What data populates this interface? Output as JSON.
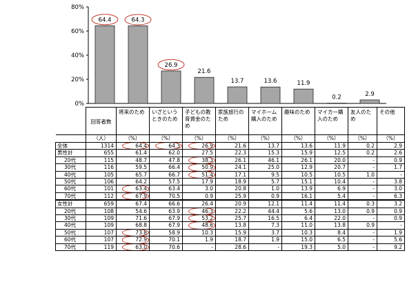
{
  "chart_data": {
    "type": "bar",
    "categories": [
      "将来のため",
      "いざというときのため",
      "子どもの教育資金のため",
      "家族旅行のため",
      "マイホーム購入のため",
      "趣味のため",
      "マイカー購入のため",
      "友人のため",
      "その他"
    ],
    "values": [
      64.4,
      64.3,
      26.9,
      21.6,
      13.7,
      13.6,
      11.9,
      0.2,
      2.9
    ],
    "value_labels": [
      "64.4",
      "64.3",
      "26.9",
      "21.6",
      "13.7",
      "13.6",
      "11.9",
      "0.2",
      "2.9"
    ],
    "circled": [
      true,
      true,
      true,
      false,
      false,
      false,
      false,
      false,
      false
    ],
    "y_ticks": [
      "0%",
      "20%",
      "40%",
      "60%",
      "80%"
    ],
    "ylim": [
      0,
      80
    ],
    "bar_color": "#a6a6a6",
    "circle_color": "#c0392b"
  },
  "table": {
    "count_header": "回答者数",
    "column_headers": [
      "将来のため",
      "いざというときのため",
      "子どもの教育資金のため",
      "家族旅行のため",
      "マイホーム購入のため",
      "趣味のため",
      "マイカー購入のため",
      "友人のため",
      "その他"
    ],
    "count_unit": "（人）",
    "pct_unit": "（%）",
    "rows": [
      {
        "label": "全体",
        "sub": false,
        "count": "1314",
        "vals": [
          "64.4",
          "64.3",
          "26.9",
          "21.6",
          "13.7",
          "13.6",
          "11.9",
          "0.2",
          "2.9"
        ],
        "circled": [
          0,
          1,
          2
        ]
      },
      {
        "label": "男性計",
        "sub": false,
        "count": "655",
        "vals": [
          "61.4",
          "62.0",
          "27.5",
          "22.3",
          "15.3",
          "15.9",
          "12.5",
          "0.2",
          "2.6"
        ],
        "circled": []
      },
      {
        "label": "20代",
        "sub": true,
        "count": "115",
        "vals": [
          "48.7",
          "47.8",
          "38.3",
          "26.1",
          "46.1",
          "26.1",
          "20.0",
          "-",
          "0.9"
        ],
        "circled": [
          2
        ]
      },
      {
        "label": "30代",
        "sub": true,
        "count": "116",
        "vals": [
          "59.5",
          "66.4",
          "50.9",
          "24.1",
          "25.0",
          "12.9",
          "20.7",
          "-",
          "1.7"
        ],
        "circled": [
          2
        ]
      },
      {
        "label": "40代",
        "sub": true,
        "count": "105",
        "vals": [
          "65.7",
          "66.7",
          "51.4",
          "17.1",
          "9.5",
          "10.5",
          "10.5",
          "1.0",
          "-"
        ],
        "circled": [
          2
        ]
      },
      {
        "label": "50代",
        "sub": true,
        "count": "106",
        "vals": [
          "64.2",
          "57.5",
          "17.9",
          "18.9",
          "5.7",
          "15.1",
          "10.4",
          "-",
          "3.8"
        ],
        "circled": []
      },
      {
        "label": "60代",
        "sub": true,
        "count": "101",
        "vals": [
          "63.4",
          "63.4",
          "3.0",
          "20.8",
          "1.0",
          "13.9",
          "6.9",
          "-",
          "3.0"
        ],
        "circled": [
          0
        ]
      },
      {
        "label": "70代",
        "sub": true,
        "count": "112",
        "vals": [
          "67.9",
          "70.5",
          "0.9",
          "25.9",
          "0.9",
          "16.1",
          "5.4",
          "-",
          "6.3"
        ],
        "circled": [
          0
        ]
      },
      {
        "label": "女性計",
        "sub": false,
        "count": "659",
        "vals": [
          "67.4",
          "66.6",
          "26.4",
          "20.9",
          "12.1",
          "11.4",
          "11.4",
          "0.3",
          "3.2"
        ],
        "circled": [],
        "thick": true
      },
      {
        "label": "20代",
        "sub": true,
        "count": "108",
        "vals": [
          "54.6",
          "63.9",
          "46.3",
          "22.2",
          "44.4",
          "5.6",
          "13.0",
          "0.9",
          "0.9"
        ],
        "circled": [
          2
        ]
      },
      {
        "label": "30代",
        "sub": true,
        "count": "109",
        "vals": [
          "71.6",
          "67.9",
          "53.2",
          "25.7",
          "16.5",
          "6.4",
          "22.0",
          "-",
          "0.9"
        ],
        "circled": [
          2
        ]
      },
      {
        "label": "40代",
        "sub": true,
        "count": "109",
        "vals": [
          "68.8",
          "67.9",
          "48.6",
          "13.8",
          "7.3",
          "11.0",
          "13.8",
          "0.9",
          "-"
        ],
        "circled": [
          2
        ]
      },
      {
        "label": "50代",
        "sub": true,
        "count": "107",
        "vals": [
          "73.8",
          "58.9",
          "10.3",
          "15.9",
          "3.7",
          "10.3",
          "8.4",
          "-",
          "1.9"
        ],
        "circled": [
          0
        ]
      },
      {
        "label": "60代",
        "sub": true,
        "count": "107",
        "vals": [
          "72.9",
          "70.1",
          "1.9",
          "18.7",
          "1.9",
          "15.0",
          "6.5",
          "-",
          "5.6"
        ],
        "circled": [
          0
        ]
      },
      {
        "label": "70代",
        "sub": true,
        "count": "119",
        "vals": [
          "63.0",
          "70.6",
          "-",
          "28.6",
          "-",
          "19.3",
          "5.0",
          "-",
          "9.2"
        ],
        "circled": [
          0
        ]
      }
    ]
  }
}
